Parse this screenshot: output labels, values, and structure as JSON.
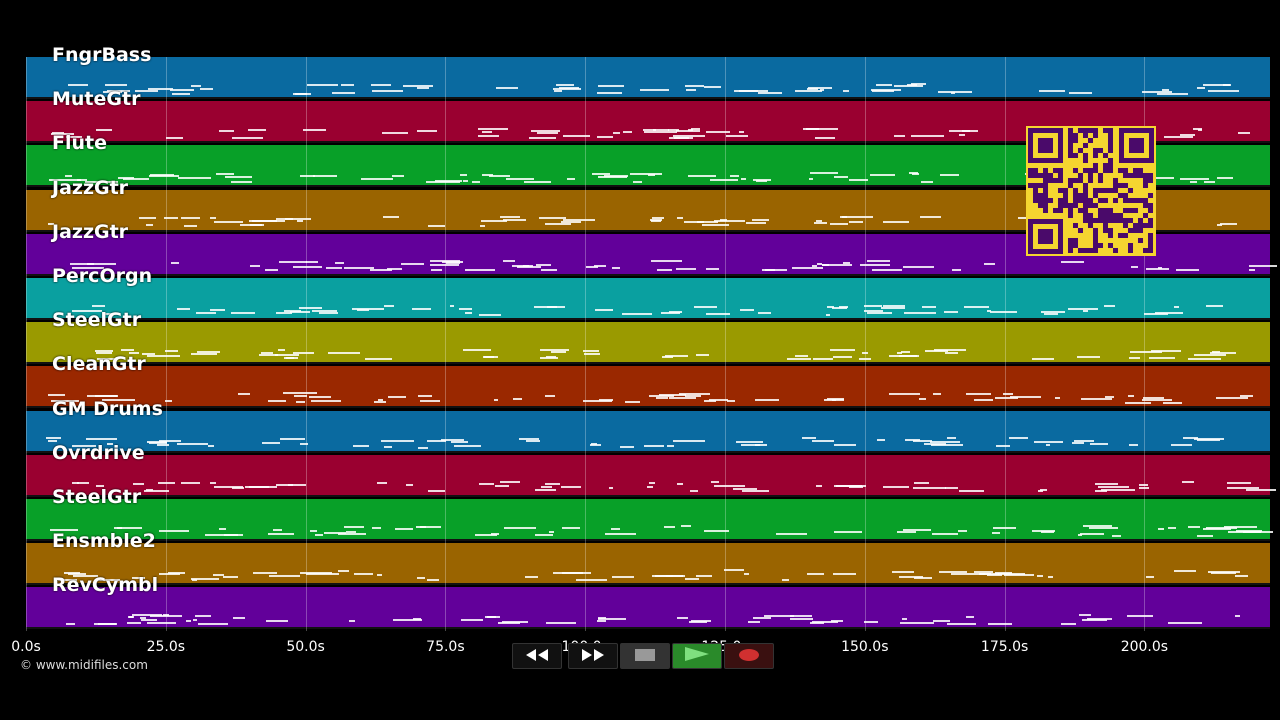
{
  "tracks": [
    {
      "name": "FngrBass",
      "color": "#0a6aa0"
    },
    {
      "name": "MuteGtr",
      "color": "#9a0030"
    },
    {
      "name": "Flute",
      "color": "#08a028"
    },
    {
      "name": "JazzGtr",
      "color": "#9a6400"
    },
    {
      "name": "JazzGtr",
      "color": "#62009a"
    },
    {
      "name": "PercOrgn",
      "color": "#0aa0a0"
    },
    {
      "name": "SteelGtr",
      "color": "#9a9a00"
    },
    {
      "name": "CleanGtr",
      "color": "#9a2800"
    },
    {
      "name": "GM Drums",
      "color": "#0a6aa0"
    },
    {
      "name": "Ovrdrive",
      "color": "#9a0030"
    },
    {
      "name": "SteelGtr",
      "color": "#08a028"
    },
    {
      "name": "Ensmble2",
      "color": "#9a6400"
    },
    {
      "name": "RevCymbl",
      "color": "#62009a"
    }
  ],
  "timeline": {
    "ticks": [
      "0.0s",
      "25.0s",
      "50.0s",
      "75.0s",
      "100.0s",
      "125.0s",
      "150.0s",
      "175.0s",
      "200.0s"
    ]
  },
  "transport": {
    "rewind_icon": "rewind-icon",
    "forward_icon": "fast-forward-icon",
    "stop_icon": "stop-icon",
    "play_icon": "play-icon",
    "record_icon": "record-icon",
    "play_color": "#2a8a2a",
    "record_color": "#d03030"
  },
  "footer": {
    "copyright": "© www.midifiles.com"
  },
  "qr": {
    "color": "#f5d530",
    "ink": "#4a0a6a"
  }
}
